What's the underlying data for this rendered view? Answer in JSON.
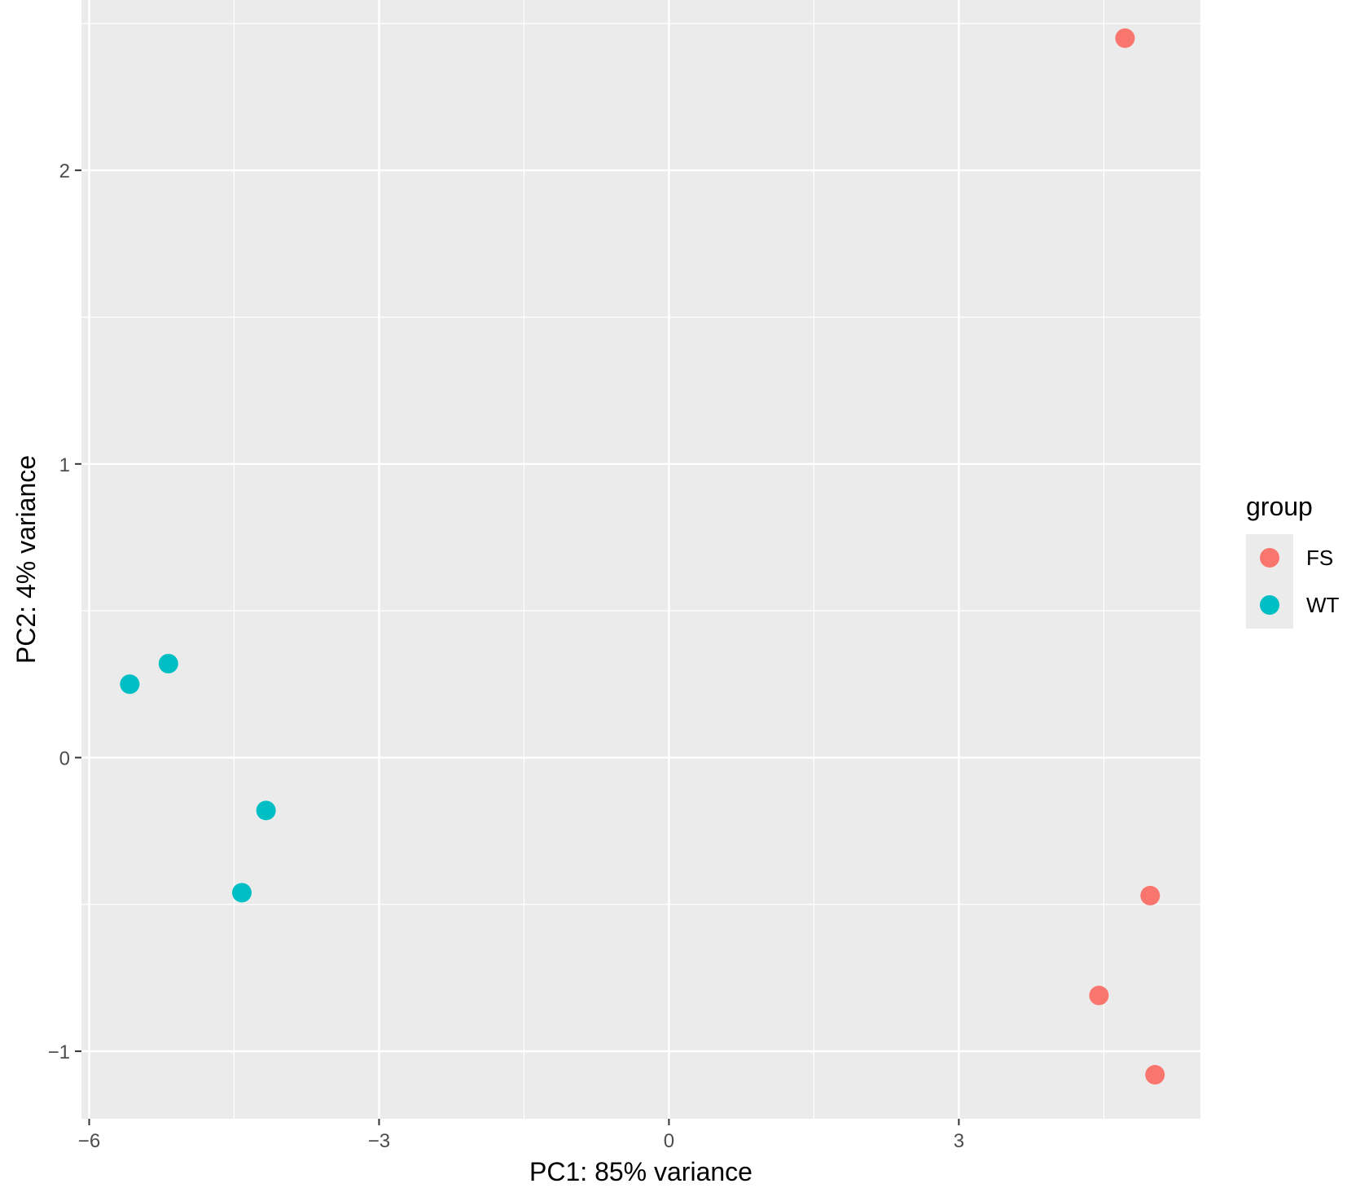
{
  "chart_data": {
    "type": "scatter",
    "xlabel": "PC1: 85% variance",
    "ylabel": "PC2: 4% variance",
    "xlim": [
      -6.08,
      5.5
    ],
    "ylim": [
      -1.23,
      2.58
    ],
    "x_ticks": [
      -6,
      -3,
      0,
      3
    ],
    "x_tick_labels": [
      "−6",
      "−3",
      "0",
      "3"
    ],
    "y_ticks": [
      -1,
      0,
      1,
      2
    ],
    "y_tick_labels": [
      "−1",
      "0",
      "1",
      "2"
    ],
    "grid": true,
    "legend": {
      "title": "group",
      "position": "right"
    },
    "series": [
      {
        "name": "FS",
        "color": "#F8766D",
        "points": [
          {
            "x": 4.72,
            "y": 2.45
          },
          {
            "x": 4.98,
            "y": -0.47
          },
          {
            "x": 4.45,
            "y": -0.81
          },
          {
            "x": 5.03,
            "y": -1.08
          }
        ]
      },
      {
        "name": "WT",
        "color": "#00BFC4",
        "points": [
          {
            "x": -5.58,
            "y": 0.25
          },
          {
            "x": -5.18,
            "y": 0.32
          },
          {
            "x": -4.17,
            "y": -0.18
          },
          {
            "x": -4.42,
            "y": -0.46
          }
        ]
      }
    ]
  }
}
